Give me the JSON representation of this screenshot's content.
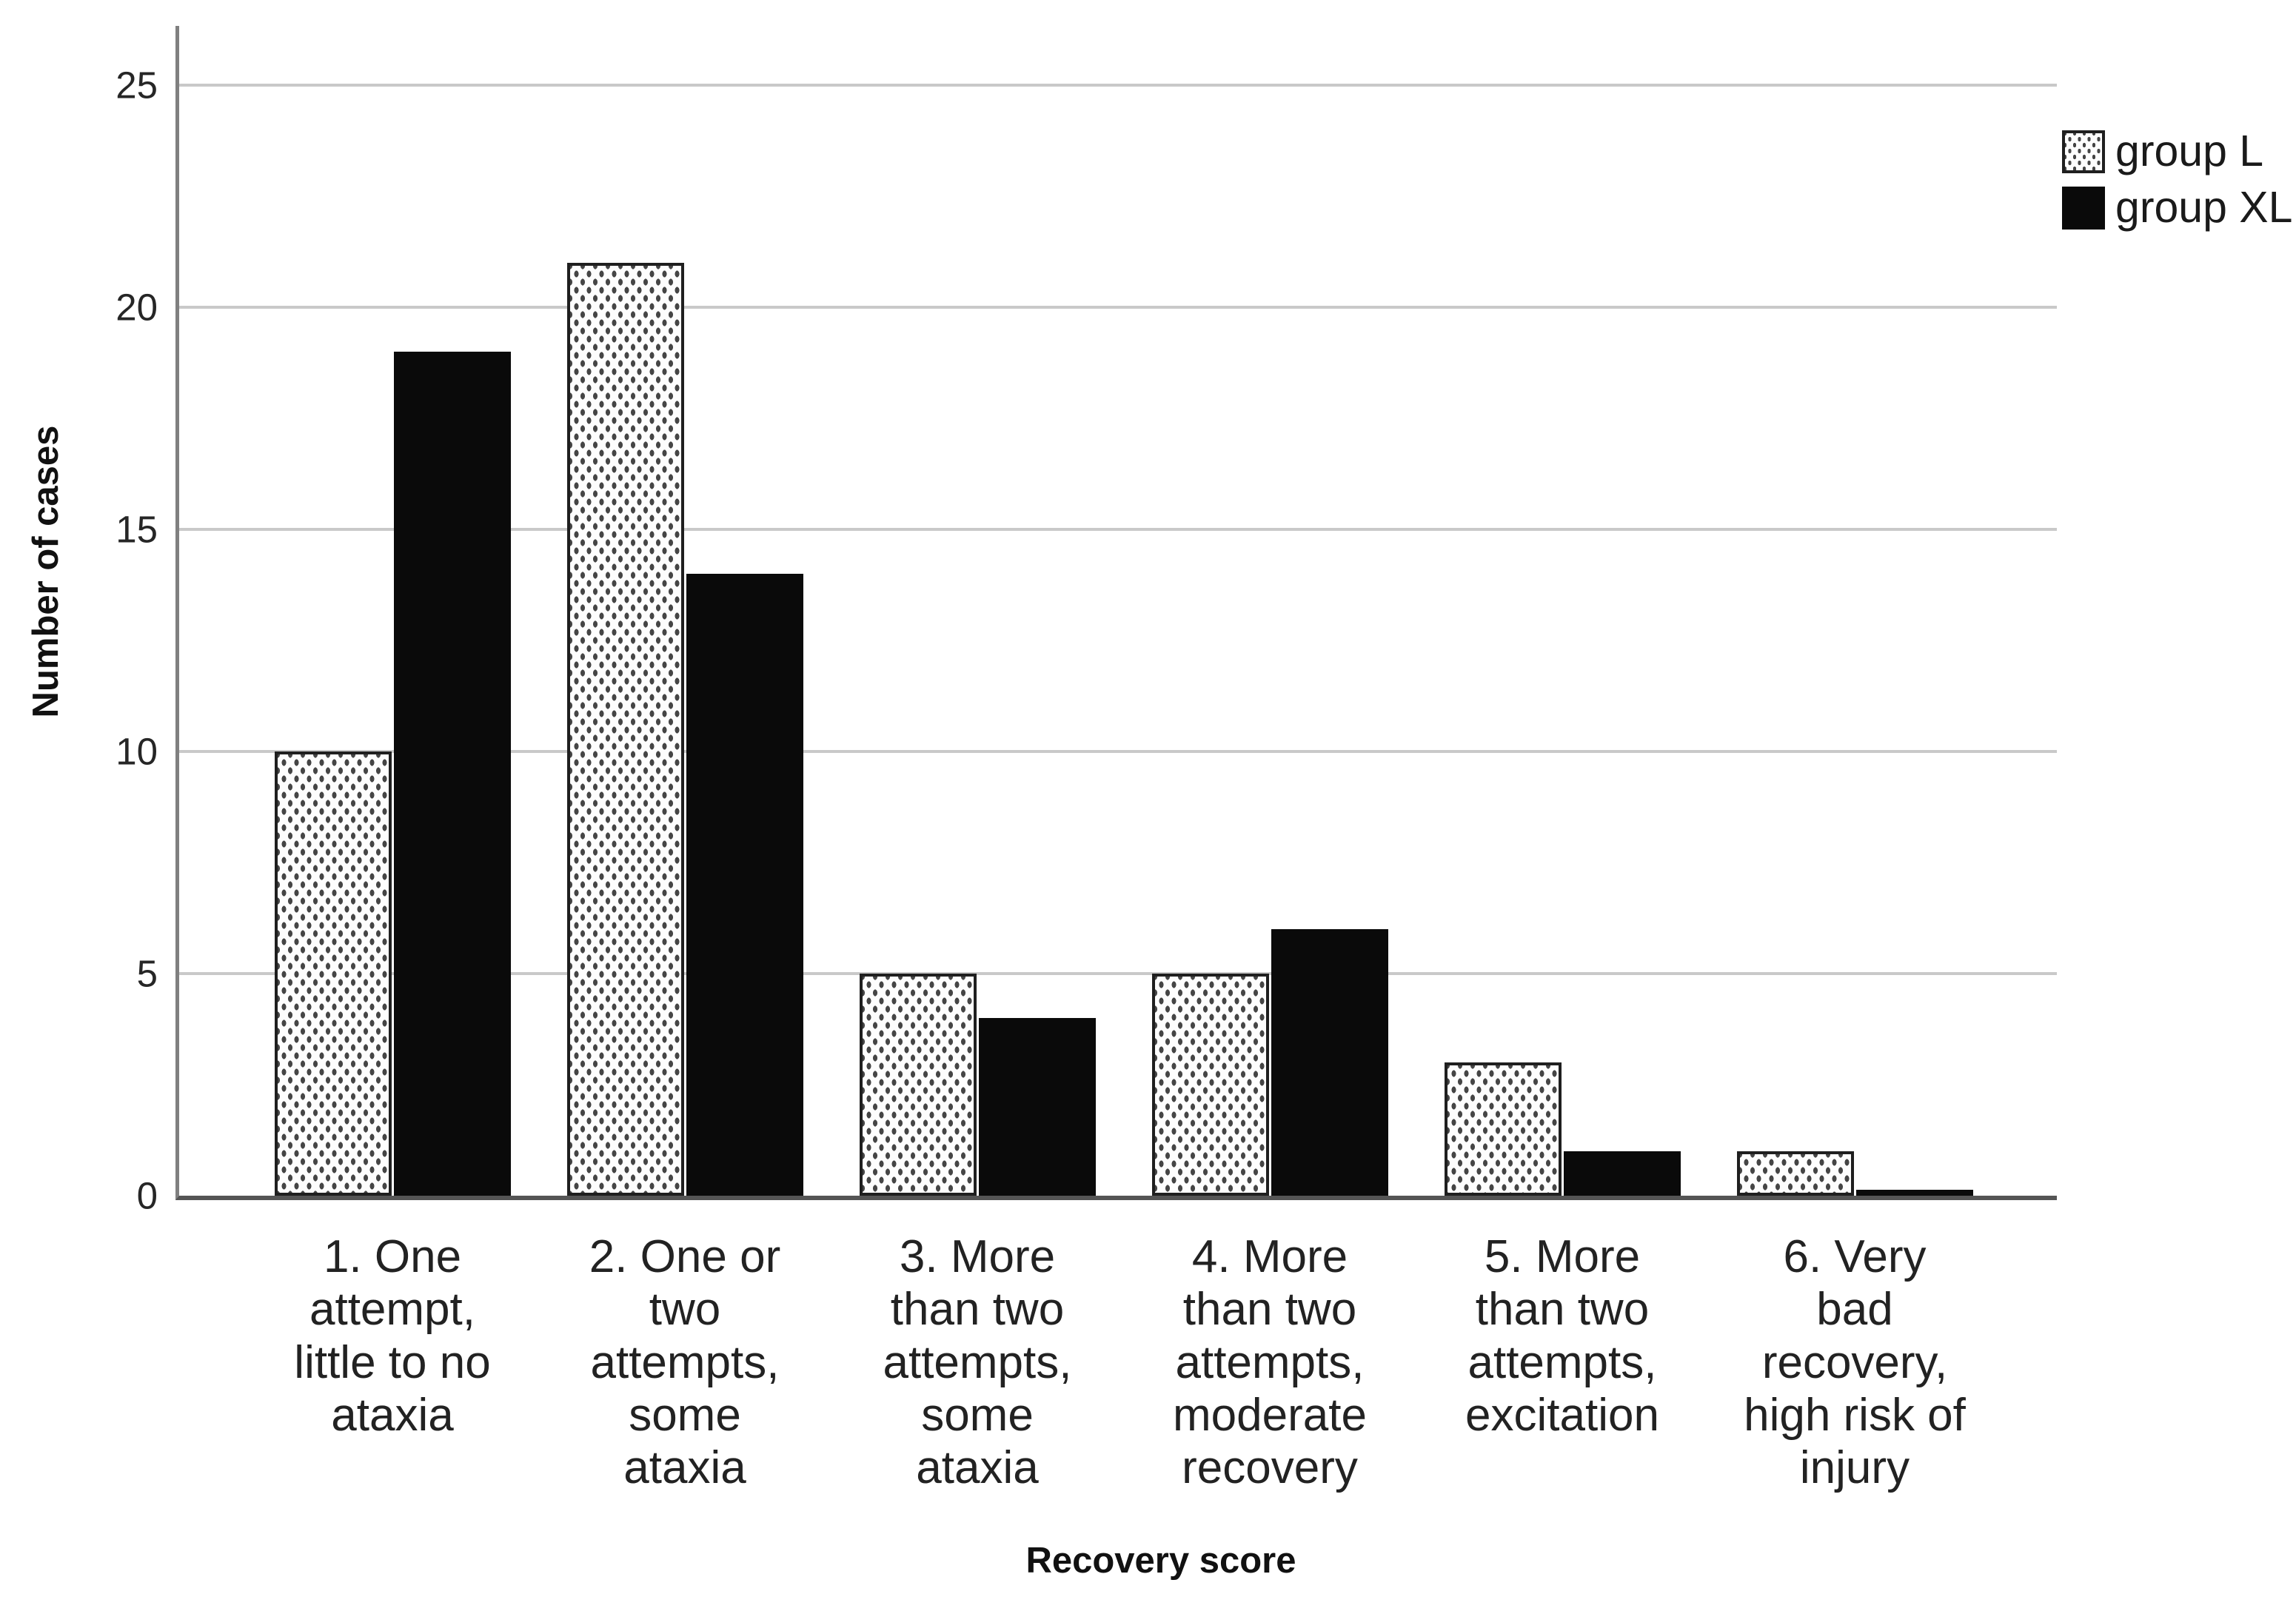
{
  "chart_data": {
    "type": "bar",
    "title": "",
    "xlabel": "Recovery score",
    "ylabel": "Number of cases",
    "categories": [
      "1. One\nattempt,\nlittle to no\nataxia",
      "2. One or\ntwo\nattempts,\nsome\nataxia",
      "3. More\nthan two\nattempts,\nsome\nataxia",
      "4. More\nthan two\nattempts,\nmoderate\nrecovery",
      "5. More\nthan two\nattempts,\nexcitation",
      "6. Very\nbad\nrecovery,\nhigh risk of\ninjury"
    ],
    "series": [
      {
        "name": "group L",
        "style": "dotted",
        "values": [
          10,
          21,
          5,
          5,
          3,
          1
        ]
      },
      {
        "name": "group XL",
        "style": "solid",
        "values": [
          19,
          14,
          4,
          6,
          1,
          0
        ]
      }
    ],
    "ylim": [
      0,
      25
    ],
    "yticks": [
      0,
      5,
      10,
      15,
      20,
      25
    ],
    "grid": true,
    "legend_position": "top-right",
    "colors": {
      "solid_bar": "#0a0a0a",
      "pattern_dot": "#454545",
      "gridline": "#c9c9c9",
      "axis_line": "#808080",
      "baseline": "#555555",
      "text": "#262626"
    }
  }
}
